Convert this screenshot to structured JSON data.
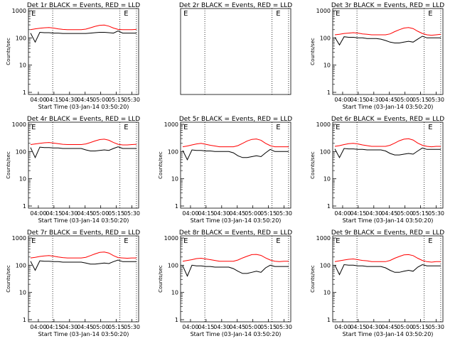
{
  "chart_data": [
    {
      "type": "line",
      "title": "Det 1r BLACK = Events, RED = LLD",
      "xlabel": "Start Time (03-Jan-14 03:50:20)",
      "ylabel": "Counts/sec",
      "yscale": "log",
      "ylim": [
        1,
        1000
      ],
      "xticks": [
        "04:00",
        "04:15",
        "04:30",
        "04:45",
        "05:00",
        "05:15",
        "05:30"
      ],
      "yticks": [
        "1",
        "10",
        "100",
        "1000"
      ],
      "markers": [
        "E",
        "E"
      ],
      "series": [
        {
          "color": "#ff0000",
          "values": [
            200,
            215,
            225,
            235,
            240,
            230,
            215,
            205,
            200,
            200,
            200,
            200,
            210,
            235,
            265,
            290,
            295,
            270,
            230,
            205,
            200,
            200,
            200,
            205
          ]
        },
        {
          "color": "#000000",
          "values": [
            150,
            70,
            160,
            155,
            155,
            150,
            150,
            145,
            145,
            145,
            145,
            145,
            145,
            150,
            155,
            160,
            160,
            155,
            150,
            180,
            150,
            150,
            150,
            150
          ]
        }
      ]
    },
    {
      "type": "line",
      "title": "Det 2r BLACK = Events, RED = LLD",
      "xlabel": "",
      "ylabel": "",
      "yscale": "log",
      "xticks": [],
      "yticks": [],
      "markers": [
        "E",
        "E"
      ],
      "series": []
    },
    {
      "type": "line",
      "title": "Det 3r BLACK = Events, RED = LLD",
      "xlabel": "Start Time (03-Jan-14 03:50:20)",
      "ylabel": "Counts/sec",
      "yscale": "log",
      "ylim": [
        1,
        1000
      ],
      "xticks": [
        "04:00",
        "04:15",
        "04:30",
        "04:45",
        "05:00",
        "05:15",
        "05:30"
      ],
      "yticks": [
        "1",
        "10",
        "100",
        "1000"
      ],
      "markers": [
        "E",
        "E"
      ],
      "series": [
        {
          "color": "#ff0000",
          "values": [
            130,
            135,
            145,
            150,
            155,
            150,
            140,
            135,
            130,
            130,
            130,
            130,
            140,
            170,
            200,
            230,
            240,
            220,
            175,
            145,
            130,
            125,
            130,
            135
          ]
        },
        {
          "color": "#000000",
          "values": [
            105,
            55,
            110,
            105,
            105,
            100,
            100,
            95,
            95,
            95,
            90,
            80,
            70,
            65,
            65,
            70,
            75,
            70,
            90,
            115,
            100,
            100,
            100,
            100
          ]
        }
      ]
    },
    {
      "type": "line",
      "title": "Det 4r BLACK = Events, RED = LLD",
      "xlabel": "Start Time (03-Jan-14 03:50:20)",
      "ylabel": "Counts/sec",
      "yscale": "log",
      "ylim": [
        1,
        1000
      ],
      "xticks": [
        "04:00",
        "04:15",
        "04:30",
        "04:45",
        "05:00",
        "05:15",
        "05:30"
      ],
      "yticks": [
        "1",
        "10",
        "100",
        "1000"
      ],
      "markers": [
        "E",
        "E"
      ],
      "series": [
        {
          "color": "#ff0000",
          "values": [
            180,
            190,
            200,
            210,
            215,
            205,
            195,
            185,
            180,
            180,
            180,
            180,
            190,
            215,
            245,
            275,
            285,
            260,
            215,
            185,
            175,
            175,
            180,
            185
          ]
        },
        {
          "color": "#000000",
          "values": [
            140,
            60,
            145,
            140,
            140,
            135,
            135,
            130,
            130,
            130,
            130,
            130,
            115,
            105,
            105,
            110,
            115,
            110,
            130,
            150,
            130,
            130,
            130,
            130
          ]
        }
      ]
    },
    {
      "type": "line",
      "title": "Det 5r BLACK = Events, RED = LLD",
      "xlabel": "Start Time (03-Jan-14 03:50:20)",
      "ylabel": "Counts/sec",
      "yscale": "log",
      "ylim": [
        1,
        1000
      ],
      "xticks": [
        "04:00",
        "04:15",
        "04:30",
        "04:45",
        "05:00",
        "05:15",
        "05:30"
      ],
      "yticks": [
        "1",
        "10",
        "100",
        "1000"
      ],
      "markers": [
        "E",
        "E"
      ],
      "series": [
        {
          "color": "#ff0000",
          "values": [
            150,
            160,
            175,
            190,
            200,
            185,
            170,
            160,
            150,
            150,
            150,
            150,
            165,
            200,
            245,
            280,
            290,
            260,
            200,
            165,
            150,
            150,
            150,
            150
          ]
        },
        {
          "color": "#000000",
          "values": [
            110,
            50,
            115,
            110,
            110,
            105,
            105,
            100,
            100,
            100,
            100,
            90,
            70,
            60,
            60,
            65,
            70,
            65,
            90,
            120,
            100,
            100,
            100,
            100
          ]
        }
      ]
    },
    {
      "type": "line",
      "title": "Det 6r BLACK = Events, RED = LLD",
      "xlabel": "Start Time (03-Jan-14 03:50:20)",
      "ylabel": "Counts/sec",
      "yscale": "log",
      "ylim": [
        1,
        1000
      ],
      "xticks": [
        "04:00",
        "04:15",
        "04:30",
        "04:45",
        "05:00",
        "05:15",
        "05:30"
      ],
      "yticks": [
        "1",
        "10",
        "100",
        "1000"
      ],
      "markers": [
        "E",
        "E"
      ],
      "series": [
        {
          "color": "#ff0000",
          "values": [
            155,
            165,
            180,
            195,
            200,
            190,
            175,
            165,
            155,
            155,
            155,
            155,
            170,
            205,
            250,
            285,
            295,
            265,
            205,
            170,
            155,
            150,
            155,
            155
          ]
        },
        {
          "color": "#000000",
          "values": [
            125,
            60,
            130,
            125,
            125,
            120,
            120,
            115,
            115,
            115,
            115,
            105,
            85,
            75,
            75,
            80,
            85,
            80,
            105,
            135,
            120,
            120,
            120,
            120
          ]
        }
      ]
    },
    {
      "type": "line",
      "title": "Det 7r BLACK = Events, RED = LLD",
      "xlabel": "Start Time (03-Jan-14 03:50:20)",
      "ylabel": "Counts/sec",
      "yscale": "log",
      "ylim": [
        1,
        1000
      ],
      "xticks": [
        "04:00",
        "04:15",
        "04:30",
        "04:45",
        "05:00",
        "05:15",
        "05:30"
      ],
      "yticks": [
        "1",
        "10",
        "100",
        "1000"
      ],
      "markers": [
        "E",
        "E"
      ],
      "series": [
        {
          "color": "#ff0000",
          "values": [
            185,
            195,
            210,
            220,
            225,
            215,
            200,
            190,
            185,
            185,
            185,
            185,
            195,
            225,
            260,
            295,
            305,
            280,
            225,
            190,
            185,
            180,
            185,
            185
          ]
        },
        {
          "color": "#000000",
          "values": [
            140,
            65,
            145,
            140,
            140,
            135,
            135,
            130,
            130,
            130,
            130,
            130,
            120,
            110,
            110,
            115,
            120,
            115,
            135,
            155,
            135,
            135,
            135,
            135
          ]
        }
      ]
    },
    {
      "type": "line",
      "title": "Det 8r BLACK = Events, RED = LLD",
      "xlabel": "Start Time (03-Jan-14 03:50:20)",
      "ylabel": "Counts/sec",
      "yscale": "log",
      "ylim": [
        1,
        1000
      ],
      "xticks": [
        "04:00",
        "04:15",
        "04:30",
        "04:45",
        "05:00",
        "05:15",
        "05:30"
      ],
      "yticks": [
        "1",
        "10",
        "100",
        "1000"
      ],
      "markers": [
        "E",
        "E"
      ],
      "series": [
        {
          "color": "#ff0000",
          "values": [
            140,
            150,
            160,
            175,
            180,
            170,
            160,
            150,
            140,
            140,
            140,
            140,
            155,
            185,
            215,
            245,
            250,
            230,
            185,
            155,
            140,
            135,
            140,
            140
          ]
        },
        {
          "color": "#000000",
          "values": [
            95,
            40,
            100,
            95,
            95,
            90,
            90,
            85,
            85,
            85,
            85,
            75,
            60,
            50,
            50,
            55,
            60,
            55,
            80,
            100,
            90,
            90,
            90,
            90
          ]
        }
      ]
    },
    {
      "type": "line",
      "title": "Det 9r BLACK = Events, RED = LLD",
      "xlabel": "Start Time (03-Jan-14 03:50:20)",
      "ylabel": "Counts/sec",
      "yscale": "log",
      "ylim": [
        1,
        1000
      ],
      "xticks": [
        "04:00",
        "04:15",
        "04:30",
        "04:45",
        "05:00",
        "05:15",
        "05:30"
      ],
      "yticks": [
        "1",
        "10",
        "100",
        "1000"
      ],
      "markers": [
        "E",
        "E"
      ],
      "series": [
        {
          "color": "#ff0000",
          "values": [
            135,
            145,
            155,
            165,
            170,
            160,
            150,
            145,
            135,
            135,
            135,
            135,
            150,
            180,
            210,
            240,
            245,
            225,
            180,
            150,
            135,
            130,
            135,
            135
          ]
        },
        {
          "color": "#000000",
          "values": [
            100,
            45,
            105,
            100,
            100,
            95,
            95,
            90,
            90,
            90,
            90,
            80,
            65,
            55,
            55,
            60,
            65,
            60,
            85,
            105,
            95,
            95,
            95,
            95
          ]
        }
      ]
    }
  ]
}
